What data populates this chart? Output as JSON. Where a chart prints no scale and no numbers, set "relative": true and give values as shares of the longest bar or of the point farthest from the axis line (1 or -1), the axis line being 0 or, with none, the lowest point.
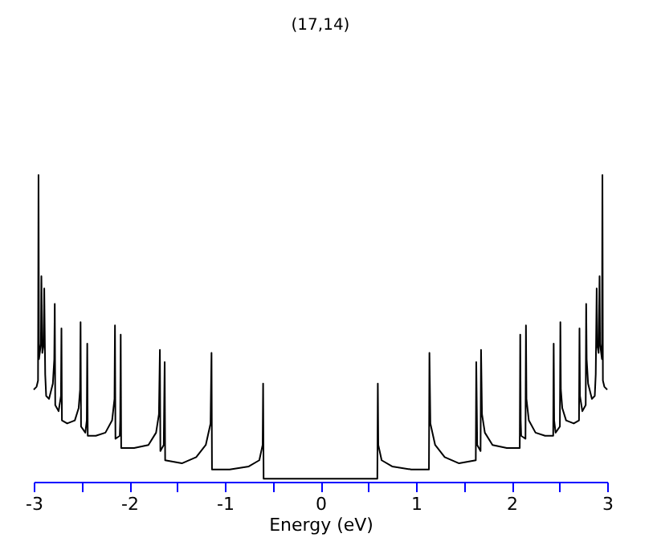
{
  "chart_data": {
    "type": "line",
    "title": "(17,14)",
    "xlabel": "Energy (eV)",
    "relative": true,
    "tick_labels": "x",
    "grid": false,
    "marker": "none",
    "line_style": "solid",
    "xlim": [
      -3,
      3
    ],
    "xticks": [
      -3,
      {
        "value": -2.5,
        "label": null
      },
      -2,
      {
        "value": -1.5,
        "label": null
      },
      -1,
      {
        "value": -0.5,
        "label": null
      },
      0,
      {
        "value": 0.5,
        "label": null
      },
      1,
      {
        "value": 1.5,
        "label": null
      },
      2,
      {
        "value": 2.5,
        "label": null
      },
      3
    ],
    "series": [
      {
        "color": "#000000",
        "x": [
          -3.0,
          -2.97,
          -2.955,
          -2.95,
          -2.945,
          -2.925,
          -2.92,
          -2.91,
          -2.895,
          -2.89,
          -2.88,
          -2.87,
          -2.84,
          -2.8,
          -2.785,
          -2.78,
          -2.775,
          -2.74,
          -2.715,
          -2.71,
          -2.705,
          -2.65,
          -2.57,
          -2.53,
          -2.515,
          -2.51,
          -2.505,
          -2.46,
          -2.445,
          -2.44,
          -2.435,
          -2.35,
          -2.25,
          -2.18,
          -2.155,
          -2.15,
          -2.145,
          -2.1,
          -2.095,
          -2.09,
          -2.085,
          -1.95,
          -1.8,
          -1.72,
          -1.69,
          -1.68,
          -1.675,
          -1.64,
          -1.63,
          -1.625,
          -1.45,
          -1.3,
          -1.2,
          -1.15,
          -1.14,
          -1.135,
          -0.95,
          -0.75,
          -0.64,
          -0.605,
          -0.6,
          -0.595,
          0,
          0.595,
          0.6,
          0.605,
          0.64,
          0.75,
          0.95,
          1.135,
          1.14,
          1.15,
          1.2,
          1.3,
          1.45,
          1.625,
          1.63,
          1.64,
          1.675,
          1.68,
          1.69,
          1.72,
          1.8,
          1.95,
          2.085,
          2.09,
          2.095,
          2.1,
          2.145,
          2.15,
          2.155,
          2.18,
          2.25,
          2.35,
          2.435,
          2.44,
          2.445,
          2.46,
          2.505,
          2.51,
          2.515,
          2.53,
          2.57,
          2.65,
          2.705,
          2.71,
          2.715,
          2.74,
          2.775,
          2.78,
          2.785,
          2.8,
          2.84,
          2.87,
          2.88,
          2.89,
          2.895,
          2.91,
          2.92,
          2.925,
          2.945,
          2.95,
          2.955,
          2.97,
          3.0
        ],
        "values": [
          0.3,
          0.31,
          0.33,
          1.0,
          0.4,
          0.45,
          0.67,
          0.42,
          0.45,
          0.63,
          0.35,
          0.28,
          0.27,
          0.32,
          0.4,
          0.58,
          0.25,
          0.23,
          0.28,
          0.5,
          0.2,
          0.19,
          0.2,
          0.24,
          0.3,
          0.52,
          0.18,
          0.16,
          0.2,
          0.45,
          0.15,
          0.15,
          0.16,
          0.2,
          0.27,
          0.51,
          0.14,
          0.15,
          0.2,
          0.48,
          0.11,
          0.11,
          0.12,
          0.16,
          0.22,
          0.43,
          0.1,
          0.12,
          0.39,
          0.07,
          0.06,
          0.08,
          0.12,
          0.19,
          0.42,
          0.04,
          0.04,
          0.05,
          0.07,
          0.12,
          0.32,
          0.01,
          0.01,
          0.01,
          0.32,
          0.12,
          0.07,
          0.05,
          0.04,
          0.04,
          0.42,
          0.19,
          0.12,
          0.08,
          0.06,
          0.07,
          0.39,
          0.12,
          0.1,
          0.43,
          0.22,
          0.16,
          0.12,
          0.11,
          0.11,
          0.48,
          0.2,
          0.15,
          0.14,
          0.51,
          0.27,
          0.2,
          0.16,
          0.15,
          0.15,
          0.45,
          0.2,
          0.16,
          0.18,
          0.52,
          0.3,
          0.24,
          0.2,
          0.19,
          0.2,
          0.5,
          0.28,
          0.23,
          0.25,
          0.58,
          0.4,
          0.32,
          0.27,
          0.28,
          0.35,
          0.63,
          0.45,
          0.42,
          0.67,
          0.45,
          0.4,
          1.0,
          0.33,
          0.31,
          0.3
        ]
      }
    ]
  }
}
